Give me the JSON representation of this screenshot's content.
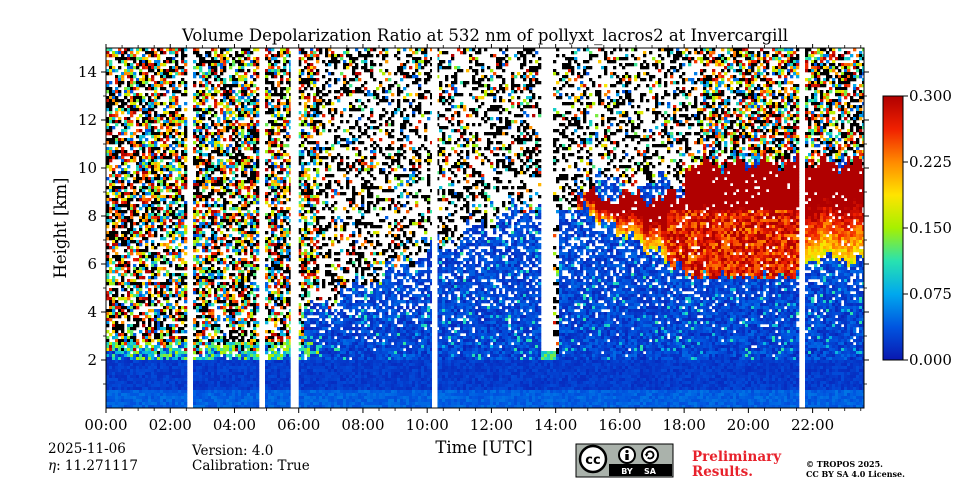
{
  "chart_data": {
    "type": "heatmap",
    "title": "Volume Depolarization Ratio at 532 nm of pollyxt_lacros2 at Invercargill",
    "xlabel": "Time [UTC]",
    "ylabel": "Height [km]",
    "x_ticks": [
      "00:00",
      "02:00",
      "04:00",
      "06:00",
      "08:00",
      "10:00",
      "12:00",
      "14:00",
      "16:00",
      "18:00",
      "20:00",
      "22:00"
    ],
    "x_tick_hours": [
      0,
      2,
      4,
      6,
      8,
      10,
      12,
      14,
      16,
      18,
      20,
      22
    ],
    "xlim_hours": [
      0,
      23.6
    ],
    "y_ticks": [
      "2",
      "4",
      "6",
      "8",
      "10",
      "12",
      "14"
    ],
    "y_tick_values": [
      2,
      4,
      6,
      8,
      10,
      12,
      14
    ],
    "ylim_km": [
      0,
      15
    ],
    "colorbar": {
      "ticks": [
        "0.000",
        "0.075",
        "0.150",
        "0.225",
        "0.300"
      ],
      "tick_values": [
        0,
        0.075,
        0.15,
        0.225,
        0.3
      ],
      "range": [
        0,
        0.3
      ],
      "colormap": [
        "#0a18b0",
        "#0055e0",
        "#00a8ee",
        "#28e2b0",
        "#a6f000",
        "#ffe400",
        "#ff8a00",
        "#f02000",
        "#b00000"
      ]
    },
    "data_gaps_hours": [
      [
        2.56,
        2.7
      ],
      [
        4.8,
        4.92
      ],
      [
        5.75,
        6.0
      ],
      [
        10.15,
        10.32
      ],
      [
        21.62,
        21.74
      ]
    ],
    "features": [
      {
        "name": "boundary layer aerosol",
        "start_hour": 0,
        "end_hour": 23.6,
        "top_km": 2.0,
        "depol": 0.01
      },
      {
        "name": "low clouds",
        "start_hour": 0.1,
        "end_hour": 6.6,
        "bottom_km": 1.8,
        "top_km": 2.8,
        "depol": 0.1
      },
      {
        "name": "low cloud",
        "start_hour": 13.6,
        "end_hour": 14.0,
        "bottom_km": 2.0,
        "top_km": 2.3,
        "depol": 0.1
      },
      {
        "name": "ice cloud",
        "start_hour": 14.7,
        "end_hour": 23.6,
        "bottom_km": 5.2,
        "top_km": 10.5,
        "depol": 0.3
      }
    ]
  },
  "meta": {
    "date": "2025-11-06",
    "eta_label": "η",
    "eta_value": ": 11.271117",
    "version": "Version: 4.0",
    "calibration": "Calibration: True",
    "license_badge": {
      "cc": "cc",
      "by": "BY",
      "sa": "SA"
    },
    "preliminary_line1": "Preliminary",
    "preliminary_line2": "Results.",
    "copyright_line1": "© TROPOS 2025.",
    "copyright_line2": "CC BY SA 4.0 License."
  },
  "colors": {
    "preliminary": "#e8212b",
    "badge_bg": "#aab2ab",
    "badge_dark": "#000000"
  }
}
